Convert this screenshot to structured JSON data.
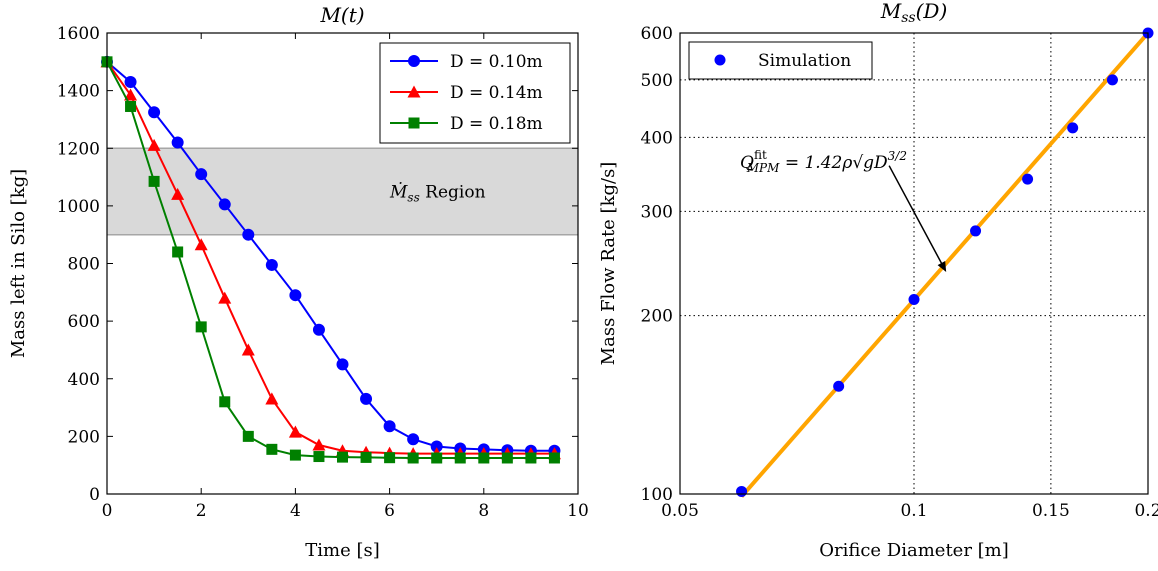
{
  "chart_data": [
    {
      "type": "line",
      "title": "M(t)",
      "xlabel": "Time [s]",
      "ylabel": "Mass left in Silo [kg]",
      "xlim": [
        0,
        10
      ],
      "ylim": [
        0,
        1600
      ],
      "xticks": [
        0,
        2,
        4,
        6,
        8,
        10
      ],
      "yticks": [
        0,
        200,
        400,
        600,
        800,
        1000,
        1200,
        1400,
        1600
      ],
      "legend_position": "top-right",
      "region": {
        "y_range": [
          900,
          1200
        ],
        "label": "Ṁ",
        "label_sub": "ss",
        "label_suffix": " Region",
        "color": "#d9d9d9"
      },
      "series": [
        {
          "name": "D = 0.10m",
          "color": "#0000ff",
          "marker": "circle",
          "x": [
            0,
            0.5,
            1,
            1.5,
            2,
            2.5,
            3,
            3.5,
            4,
            4.5,
            5,
            5.5,
            6,
            6.5,
            7,
            7.5,
            8,
            8.5,
            9,
            9.5
          ],
          "y": [
            1500,
            1430,
            1325,
            1220,
            1110,
            1005,
            900,
            795,
            690,
            570,
            450,
            330,
            235,
            190,
            165,
            158,
            155,
            152,
            150,
            150
          ]
        },
        {
          "name": "D = 0.14m",
          "color": "#ff0000",
          "marker": "triangle",
          "x": [
            0,
            0.5,
            1,
            1.5,
            2,
            2.5,
            3,
            3.5,
            4,
            4.5,
            5,
            5.5,
            6,
            6.5,
            7,
            7.5,
            8,
            8.5,
            9,
            9.5
          ],
          "y": [
            1500,
            1385,
            1210,
            1040,
            865,
            680,
            500,
            330,
            215,
            170,
            150,
            145,
            142,
            140,
            140,
            140,
            140,
            140,
            140,
            140
          ]
        },
        {
          "name": "D = 0.18m",
          "color": "#008000",
          "marker": "square",
          "x": [
            0,
            0.5,
            1,
            1.5,
            2,
            2.5,
            3,
            3.5,
            4,
            4.5,
            5,
            5.5,
            6,
            6.5,
            7,
            7.5,
            8,
            8.5,
            9,
            9.5
          ],
          "y": [
            1500,
            1345,
            1085,
            840,
            580,
            320,
            200,
            155,
            135,
            130,
            128,
            127,
            126,
            125,
            125,
            125,
            125,
            125,
            125,
            125
          ]
        }
      ]
    },
    {
      "type": "scatter",
      "title": "M_ss(D)",
      "xlabel": "Orifice Diameter [m]",
      "ylabel": "Mass Flow Rate [kg/s]",
      "xscale": "log",
      "yscale": "log",
      "xlim": [
        0.05,
        0.2
      ],
      "ylim": [
        100,
        600
      ],
      "xticks": [
        0.05,
        0.1,
        0.15,
        0.2
      ],
      "xtick_labels": [
        "0.05",
        "0.1",
        "0.15",
        "0.2"
      ],
      "yticks": [
        100,
        200,
        300,
        400,
        500,
        600
      ],
      "grid": true,
      "legend_position": "top-left",
      "series": [
        {
          "name": "Simulation",
          "color": "#0000ff",
          "marker": "circle",
          "x": [
            0.06,
            0.08,
            0.1,
            0.12,
            0.14,
            0.16,
            0.18,
            0.2
          ],
          "y": [
            101,
            152,
            213,
            278,
            340,
            415,
            500,
            600
          ]
        }
      ],
      "fit_line": {
        "color": "#ffa500",
        "x": [
          0.06,
          0.2
        ],
        "y": [
          99,
          600
        ]
      },
      "annotation": {
        "text_main": "Q",
        "text_sup": "fit",
        "text_sub": "MPM",
        "text_rest": " = 1.42ρ√gD",
        "text_exp": "3/2",
        "arrow_to": [
          0.11,
          237
        ],
        "arrow_from": [
          0.085,
          350
        ]
      }
    }
  ]
}
